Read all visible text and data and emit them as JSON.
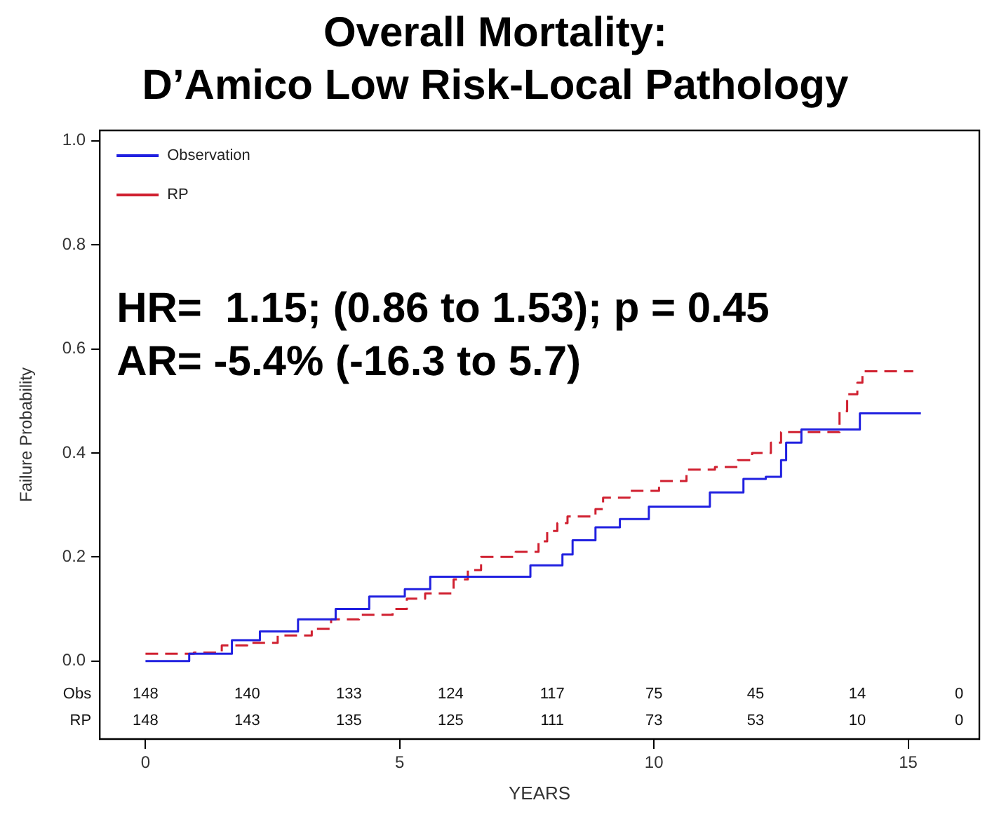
{
  "chart_data": {
    "type": "step",
    "title": "Overall Mortality:\nD’Amico Low Risk-Local Pathology",
    "xlabel": "YEARS",
    "ylabel": "Failure Probability",
    "xlim": [
      -0.9,
      16.4
    ],
    "xticks": [
      0,
      5,
      10,
      15
    ],
    "ylim": [
      -0.15,
      1.02
    ],
    "yticks": [
      {
        "value": 0,
        "label": "0.0"
      },
      {
        "value": 0.2,
        "label": "0.2"
      },
      {
        "value": 0.4,
        "label": "0.4"
      },
      {
        "value": 0.6,
        "label": "0.6"
      },
      {
        "value": 0.8,
        "label": "0.8"
      },
      {
        "value": 1,
        "label": "1.0"
      }
    ],
    "grid": false,
    "legend": "top left",
    "marker": "none",
    "series": [
      {
        "name": "Observation",
        "color": "#2020e0",
        "line_style": "solid",
        "x": [
          0,
          0.86,
          1.7,
          2.25,
          3.0,
          3.74,
          4.4,
          5.1,
          5.6,
          6.26,
          7.57,
          8.2,
          8.4,
          8.85,
          9.33,
          9.9,
          10.8,
          11.1,
          11.65,
          11.76,
          12.2,
          12.5,
          12.6,
          12.9,
          14.0,
          14.05,
          15.25
        ],
        "values": [
          0,
          0.014,
          0.04,
          0.057,
          0.08,
          0.1,
          0.124,
          0.138,
          0.162,
          0.162,
          0.184,
          0.205,
          0.232,
          0.257,
          0.273,
          0.297,
          0.297,
          0.324,
          0.324,
          0.35,
          0.354,
          0.386,
          0.42,
          0.445,
          0.445,
          0.476,
          0.476
        ]
      },
      {
        "name": "RP",
        "color": "#d02030",
        "line_style": "dashed",
        "x": [
          0,
          0.95,
          1.5,
          2.0,
          2.6,
          3.27,
          3.65,
          4.2,
          4.86,
          5.14,
          5.5,
          6.06,
          6.34,
          6.6,
          7.28,
          7.73,
          7.9,
          8.1,
          8.3,
          8.85,
          9.0,
          9.52,
          10.1,
          10.64,
          11.2,
          11.65,
          11.93,
          12.3,
          12.5,
          13.6,
          13.65,
          13.8,
          14.0,
          14.1,
          15.1
        ],
        "values": [
          0.014,
          0.016,
          0.03,
          0.035,
          0.049,
          0.062,
          0.08,
          0.089,
          0.1,
          0.12,
          0.13,
          0.157,
          0.175,
          0.2,
          0.21,
          0.23,
          0.25,
          0.265,
          0.278,
          0.292,
          0.314,
          0.327,
          0.346,
          0.368,
          0.373,
          0.386,
          0.4,
          0.42,
          0.44,
          0.44,
          0.48,
          0.513,
          0.535,
          0.557,
          0.557
        ]
      }
    ],
    "annotations": [
      "HR=  1.15; (0.86 to 1.53); p = 0.45",
      "AR= -5.4% (-16.3 to 5.7)",
      "Obs",
      "148",
      "140",
      "133",
      "124",
      "117",
      "75",
      "45",
      "14",
      "0",
      "RP",
      "148",
      "143",
      "135",
      "125",
      "111",
      "73",
      "53",
      "10",
      "0"
    ]
  }
}
